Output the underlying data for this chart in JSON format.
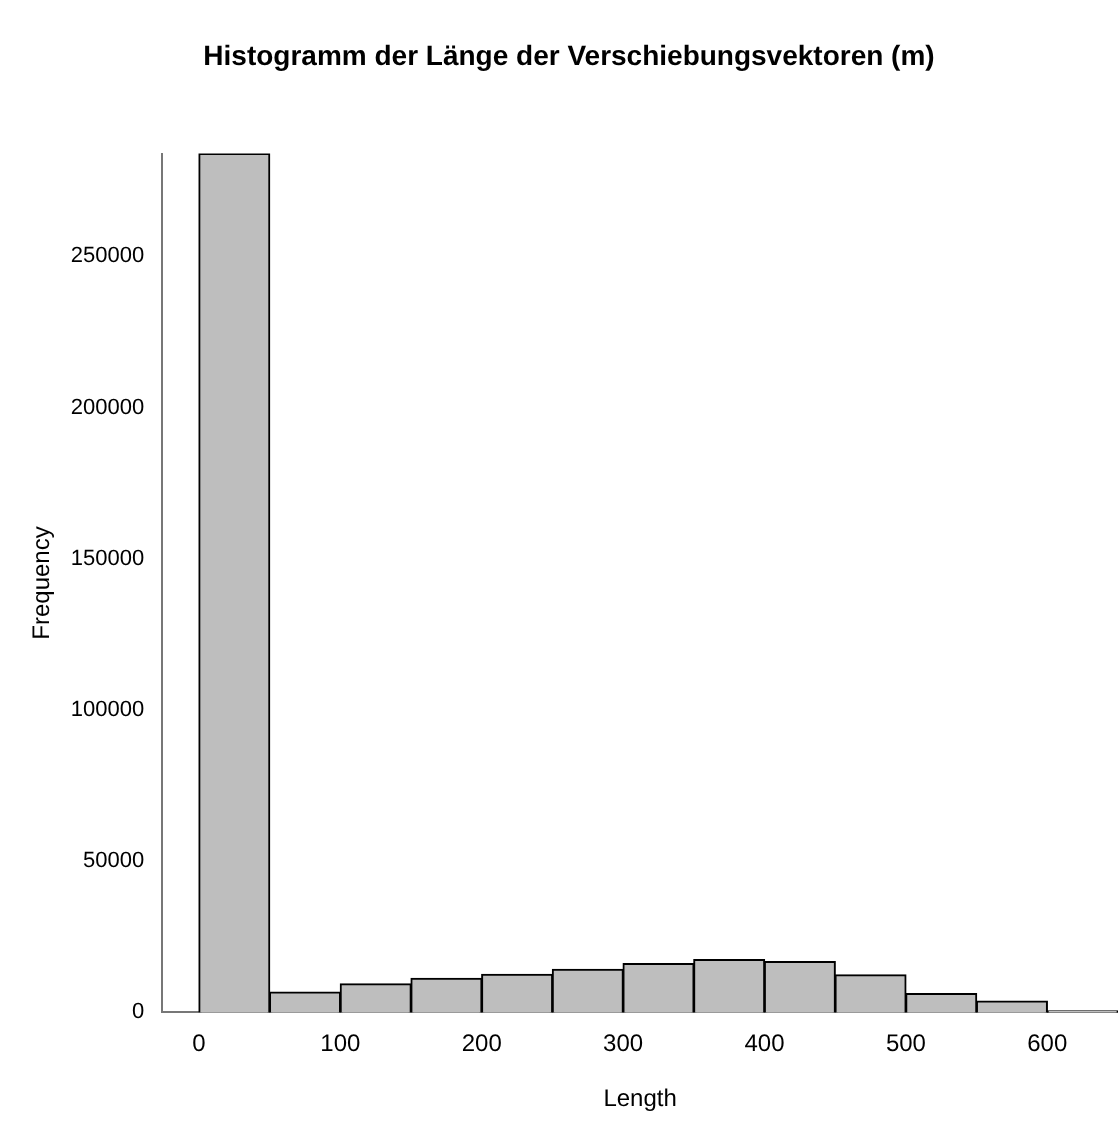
{
  "chart_data": {
    "type": "histogram",
    "title": "Histogramm der Länge der Verschiebungsvektoren (m)",
    "xlabel": "Length",
    "ylabel": "Frequency",
    "bins": [
      0,
      50,
      100,
      150,
      200,
      250,
      300,
      350,
      400,
      450,
      500,
      550,
      600,
      650
    ],
    "values": [
      284000,
      6700,
      9400,
      11200,
      12600,
      14200,
      16100,
      17400,
      16800,
      12400,
      6200,
      3700,
      500
    ],
    "color": "#bebebe",
    "xlim": [
      -26,
      650
    ],
    "ylim": [
      0,
      284000
    ],
    "xticks": [
      0,
      100,
      200,
      300,
      400,
      500,
      600
    ],
    "yticks": [
      0,
      50000,
      100000,
      150000,
      200000,
      250000
    ],
    "grid": false,
    "legend": false
  }
}
